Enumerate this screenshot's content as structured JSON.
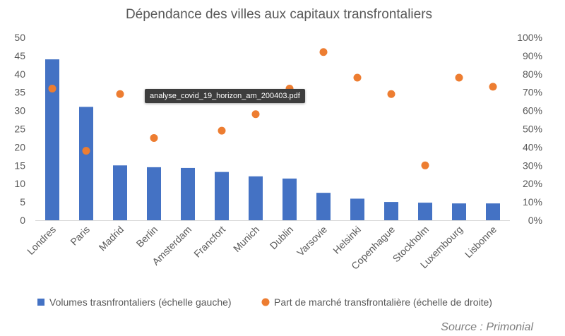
{
  "tooltip": {
    "text": "analyse_covid_19_horizon_am_200403.pdf"
  },
  "source": "Source : Primonial",
  "chart_data": {
    "type": "bar",
    "title": "Dépendance des villes aux capitaux transfrontaliers",
    "categories": [
      "Londres",
      "Paris",
      "Madrid",
      "Berlin",
      "Amsterdam",
      "Francfort",
      "Munich",
      "Dublin",
      "Varsovie",
      "Helsinki",
      "Copenhague",
      "Stockholm",
      "Luxembourg",
      "Lisbonne"
    ],
    "series": [
      {
        "name": "Volumes trasnfrontaliers (échelle gauche)",
        "type": "bar",
        "axis": "left",
        "color": "#4472C4",
        "values": [
          44,
          31,
          15,
          14.5,
          14.3,
          13.2,
          12,
          11.4,
          7.5,
          5.9,
          5,
          4.8,
          4.6,
          4.6
        ]
      },
      {
        "name": "Part de marché transfrontalière (échelle de droite)",
        "type": "scatter",
        "axis": "right",
        "color": "#ED7D31",
        "values": [
          72,
          38,
          69,
          45,
          null,
          49,
          58,
          72,
          92,
          78,
          69,
          30,
          78,
          73
        ]
      }
    ],
    "y_left": {
      "lim": [
        0,
        50
      ],
      "ticks": [
        "0",
        "5",
        "10",
        "15",
        "20",
        "25",
        "30",
        "35",
        "40",
        "45",
        "50"
      ]
    },
    "y_right": {
      "lim": [
        0,
        100
      ],
      "ticks": [
        "0%",
        "10%",
        "20%",
        "30%",
        "40%",
        "50%",
        "60%",
        "70%",
        "80%",
        "90%",
        "100%"
      ]
    },
    "grid": false,
    "legend_position": "bottom"
  }
}
